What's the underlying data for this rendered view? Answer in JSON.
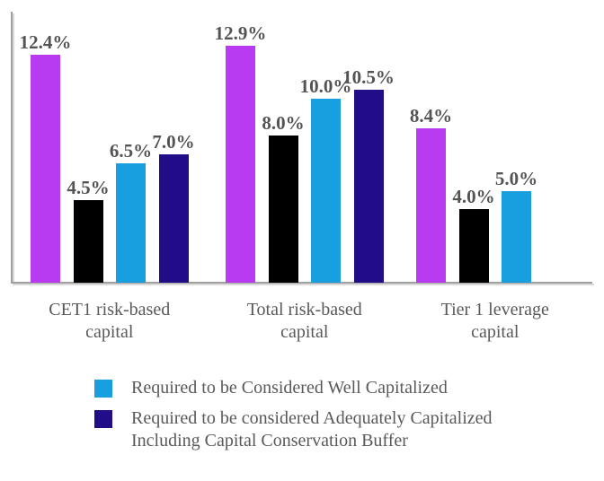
{
  "chart_data": {
    "type": "bar",
    "title": "",
    "xlabel": "",
    "ylabel": "",
    "categories": [
      "CET1 risk-based capital",
      "Total risk-based capital",
      "Tier 1 leverage capital"
    ],
    "category_label_lines": [
      [
        "CET1 risk-based",
        "capital"
      ],
      [
        "Total risk-based",
        "capital"
      ],
      [
        "Tier 1 leverage",
        "capital"
      ]
    ],
    "series": [
      {
        "name": "",
        "color": "#b93bf1",
        "values": [
          12.4,
          12.9,
          8.4
        ],
        "data_labels": [
          "12.4%",
          "12.9%",
          "8.4%"
        ]
      },
      {
        "name": "",
        "color": "#000000",
        "values": [
          4.5,
          8.0,
          4.0
        ],
        "data_labels": [
          "4.5%",
          "8.0%",
          "4.0%"
        ]
      },
      {
        "name": "Required to be Considered Well Capitalized",
        "color": "#189fe0",
        "values": [
          6.5,
          10.0,
          5.0
        ],
        "data_labels": [
          "6.5%",
          "10.0%",
          "5.0%"
        ]
      },
      {
        "name": "Required to be considered Adequately Capitalized Including Capital Conservation Buffer",
        "color": "#230c87",
        "values": [
          7.0,
          10.5,
          null
        ],
        "data_labels": [
          "7.0%",
          "10.5%",
          null
        ]
      }
    ],
    "ylim": [
      0,
      14.8
    ],
    "grid": false,
    "y_axis_ticks": [],
    "legend_position": "bottom",
    "legend": [
      {
        "swatch_color": "#189fe0",
        "label": "Required to be Considered Well Capitalized"
      },
      {
        "swatch_color": "#230c87",
        "label": "Required to be considered Adequately Capitalized Including Capital Conservation Buffer"
      }
    ],
    "axis_color": "#a0a0a0",
    "axis_shadow_color": "#d9d9d9",
    "data_label_color": "#545454",
    "text_color": "#595959",
    "background_color": "#ffffff"
  }
}
